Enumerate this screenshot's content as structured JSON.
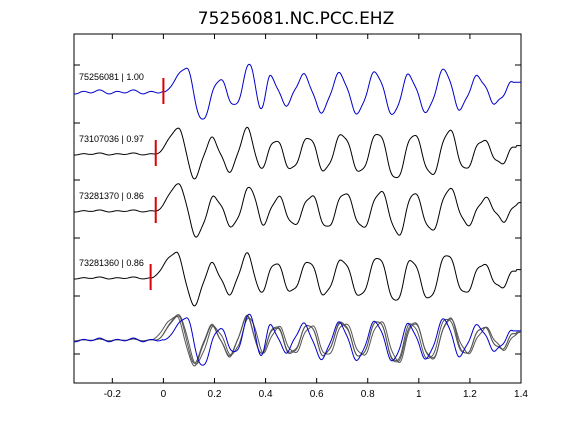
{
  "chart_data": {
    "type": "line",
    "title": "75256081.NC.PCC.EHZ",
    "xlabel": "",
    "ylabel": "",
    "xlim": [
      -0.35,
      1.4
    ],
    "x_ticks": [
      "-0.2",
      "0",
      "0.2",
      "0.4",
      "0.6",
      "0.8",
      "1",
      "1.2",
      "1.4"
    ],
    "x_tick_values": [
      -0.2,
      0,
      0.2,
      0.4,
      0.6,
      0.8,
      1.0,
      1.2,
      1.4
    ],
    "grid": false,
    "series": [
      {
        "name": "75256081 | 1.00",
        "color": "#0000cc",
        "pick_time": 0.0,
        "pick_color": "#dd0000",
        "waveform": {
          "onset": 0.0,
          "pre_noise": 0.08,
          "peaks_t": [
            0.09,
            0.15,
            0.22,
            0.28,
            0.34,
            0.38,
            0.42,
            0.48,
            0.55,
            0.62,
            0.69,
            0.76,
            0.83,
            0.9,
            0.96,
            1.03,
            1.1,
            1.16,
            1.23,
            1.3,
            1.37
          ],
          "peaks_a": [
            0.85,
            -1.0,
            0.45,
            -0.5,
            1.0,
            -0.6,
            0.55,
            -0.45,
            0.6,
            -0.7,
            0.65,
            -0.75,
            0.7,
            -0.8,
            0.6,
            -0.7,
            0.8,
            -0.6,
            0.55,
            -0.4,
            0.35
          ]
        }
      },
      {
        "name": "73107036 | 0.97",
        "color": "#000000",
        "pick_time": -0.03,
        "pick_color": "#dd0000",
        "waveform": {
          "onset": -0.03,
          "pre_noise": 0.04,
          "peaks_t": [
            0.06,
            0.12,
            0.19,
            0.26,
            0.33,
            0.38,
            0.44,
            0.5,
            0.57,
            0.63,
            0.7,
            0.77,
            0.84,
            0.91,
            0.98,
            1.05,
            1.12,
            1.18,
            1.25,
            1.32,
            1.38
          ],
          "peaks_a": [
            0.9,
            -0.85,
            0.55,
            -0.6,
            0.9,
            -0.5,
            0.5,
            -0.55,
            0.6,
            -0.6,
            0.7,
            -0.65,
            0.75,
            -0.9,
            0.7,
            -0.75,
            0.85,
            -0.55,
            0.5,
            -0.35,
            0.3
          ]
        }
      },
      {
        "name": "73281370 | 0.86",
        "color": "#000000",
        "pick_time": -0.03,
        "pick_color": "#dd0000",
        "waveform": {
          "onset": -0.03,
          "pre_noise": 0.04,
          "peaks_t": [
            0.06,
            0.13,
            0.2,
            0.27,
            0.34,
            0.39,
            0.45,
            0.51,
            0.58,
            0.64,
            0.71,
            0.78,
            0.85,
            0.92,
            0.98,
            1.05,
            1.12,
            1.19,
            1.26,
            1.33,
            1.39
          ],
          "peaks_a": [
            0.95,
            -0.9,
            0.5,
            -0.55,
            0.85,
            -0.45,
            0.5,
            -0.5,
            0.55,
            -0.6,
            0.65,
            -0.6,
            0.7,
            -0.85,
            0.65,
            -0.7,
            0.8,
            -0.5,
            0.45,
            -0.35,
            0.3
          ]
        }
      },
      {
        "name": "73281360 | 0.86",
        "color": "#000000",
        "pick_time": -0.05,
        "pick_color": "#dd0000",
        "waveform": {
          "onset": -0.05,
          "pre_noise": 0.04,
          "peaks_t": [
            0.05,
            0.12,
            0.19,
            0.26,
            0.33,
            0.38,
            0.44,
            0.5,
            0.57,
            0.63,
            0.7,
            0.77,
            0.84,
            0.91,
            0.97,
            1.04,
            1.11,
            1.18,
            1.25,
            1.32,
            1.38
          ],
          "peaks_a": [
            0.9,
            -0.95,
            0.5,
            -0.55,
            0.85,
            -0.5,
            0.55,
            -0.5,
            0.6,
            -0.6,
            0.65,
            -0.65,
            0.75,
            -0.85,
            0.65,
            -0.75,
            0.85,
            -0.55,
            0.5,
            -0.35,
            0.3
          ]
        }
      }
    ]
  }
}
